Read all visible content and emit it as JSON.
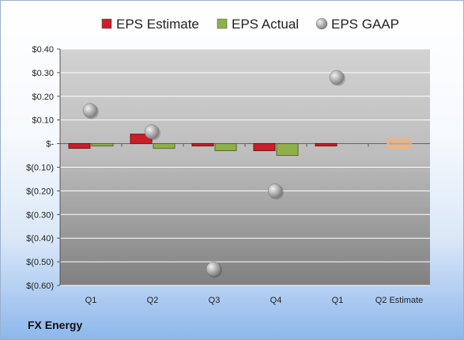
{
  "chart_data": {
    "type": "bar",
    "categories": [
      "Q1",
      "Q2",
      "Q3",
      "Q4",
      "Q1",
      "Q2 Estimate"
    ],
    "series": [
      {
        "name": "EPS Estimate",
        "kind": "bar",
        "color": "#c8202a",
        "values": [
          -0.02,
          0.04,
          -0.01,
          -0.03,
          -0.01,
          null
        ]
      },
      {
        "name": "EPS Actual",
        "kind": "bar",
        "color": "#8fb04a",
        "values": [
          -0.01,
          -0.02,
          -0.03,
          -0.05,
          null,
          null
        ]
      },
      {
        "name": "EPS GAAP",
        "kind": "scatter",
        "color": "#a8a8a8",
        "values": [
          0.14,
          0.05,
          -0.53,
          -0.2,
          0.28,
          null
        ]
      },
      {
        "name": "",
        "kind": "bar",
        "color": "#f2b27a",
        "values": [
          null,
          null,
          null,
          null,
          null,
          0.0
        ]
      }
    ],
    "yticks": [
      0.4,
      0.3,
      0.2,
      0.1,
      0.0,
      -0.1,
      -0.2,
      -0.3,
      -0.4,
      -0.5,
      -0.6
    ],
    "ytick_labels": [
      "$0.40",
      "$0.30",
      "$0.20",
      "$0.10",
      "$-",
      "$(0.10)",
      "$(0.20)",
      "$(0.30)",
      "$(0.40)",
      "$(0.50)",
      "$(0.60)"
    ],
    "ylim": [
      -0.6,
      0.4
    ],
    "grid": true,
    "legend_position": "top"
  },
  "company_name": "FX Energy"
}
